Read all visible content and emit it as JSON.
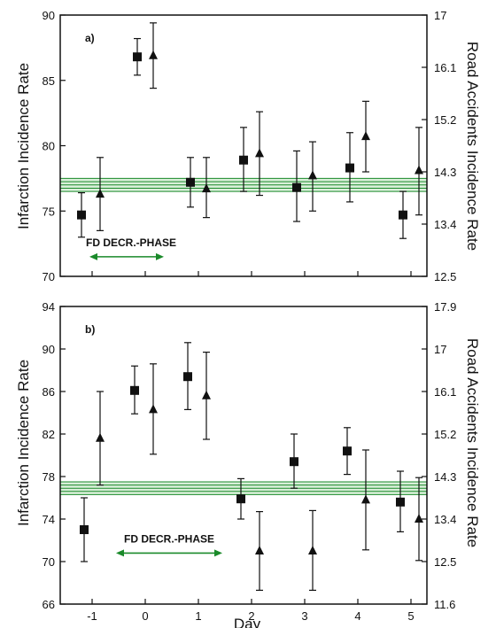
{
  "chart_data": [
    {
      "type": "scatter",
      "panel_label": "a)",
      "ylabel": "Infarction Incidence Rate",
      "y2label": "Road Accidents Incidence Rate",
      "xlim": [
        -1.6,
        5.3
      ],
      "ylim": [
        70,
        90
      ],
      "y2lim": [
        12.5,
        17
      ],
      "yticks": [
        "70",
        "75",
        "80",
        "85",
        "90"
      ],
      "y2ticks": [
        "12.5",
        "13.4",
        "14.3",
        "15.2",
        "16.1",
        "17"
      ],
      "grid": false,
      "legend": "none",
      "baseline_band": [
        76.5,
        77.5
      ],
      "series": [
        {
          "marker": "square",
          "points": [
            {
              "x": -1.2,
              "y": 74.7,
              "lo": 73.0,
              "hi": 76.4
            },
            {
              "x": -0.15,
              "y": 86.8,
              "lo": 85.4,
              "hi": 88.2
            },
            {
              "x": 0.85,
              "y": 77.2,
              "lo": 75.3,
              "hi": 79.1
            },
            {
              "x": 1.85,
              "y": 78.9,
              "lo": 76.5,
              "hi": 81.4
            },
            {
              "x": 2.85,
              "y": 76.8,
              "lo": 74.2,
              "hi": 79.6
            },
            {
              "x": 3.85,
              "y": 78.3,
              "lo": 75.7,
              "hi": 81.0
            },
            {
              "x": 4.85,
              "y": 74.7,
              "lo": 72.9,
              "hi": 76.5
            }
          ]
        },
        {
          "marker": "triangle",
          "points": [
            {
              "x": -0.85,
              "y": 76.3,
              "lo": 73.5,
              "hi": 79.1
            },
            {
              "x": 0.15,
              "y": 86.9,
              "lo": 84.4,
              "hi": 89.4
            },
            {
              "x": 1.15,
              "y": 76.7,
              "lo": 74.5,
              "hi": 79.1
            },
            {
              "x": 2.15,
              "y": 79.4,
              "lo": 76.2,
              "hi": 82.6
            },
            {
              "x": 3.15,
              "y": 77.7,
              "lo": 75.0,
              "hi": 80.3
            },
            {
              "x": 4.15,
              "y": 80.7,
              "lo": 78.0,
              "hi": 83.4
            },
            {
              "x": 5.15,
              "y": 78.1,
              "lo": 74.7,
              "hi": 81.4
            }
          ]
        }
      ],
      "annotation": {
        "text": "FD DECR.-PHASE",
        "x_start": -1.05,
        "x_end": 0.35,
        "arrow_y": 71.5
      }
    },
    {
      "type": "scatter",
      "panel_label": "b)",
      "ylabel": "Infarction Incidence Rate",
      "y2label": "Road Accidents Incidence Rate",
      "xlabel": "Day",
      "xlim": [
        -1.6,
        5.3
      ],
      "ylim": [
        66,
        94
      ],
      "y2lim": [
        11.6,
        17.9
      ],
      "xticks": [
        "-1",
        "0",
        "1",
        "2",
        "3",
        "4",
        "5"
      ],
      "yticks": [
        "66",
        "70",
        "74",
        "78",
        "82",
        "86",
        "90",
        "94"
      ],
      "y2ticks": [
        "11.6",
        "12.5",
        "13.4",
        "14.3",
        "15.2",
        "16.1",
        "17",
        "17.9"
      ],
      "grid": false,
      "legend": "none",
      "baseline_band": [
        76.3,
        77.5
      ],
      "series": [
        {
          "marker": "square",
          "points": [
            {
              "x": -1.15,
              "y": 73.0,
              "lo": 70.0,
              "hi": 76.0
            },
            {
              "x": -0.2,
              "y": 86.1,
              "lo": 83.9,
              "hi": 88.4
            },
            {
              "x": 0.8,
              "y": 87.4,
              "lo": 84.3,
              "hi": 90.6
            },
            {
              "x": 1.8,
              "y": 75.9,
              "lo": 74.0,
              "hi": 77.8
            },
            {
              "x": 2.8,
              "y": 79.4,
              "lo": 76.9,
              "hi": 82.0
            },
            {
              "x": 3.8,
              "y": 80.4,
              "lo": 78.2,
              "hi": 82.6
            },
            {
              "x": 4.8,
              "y": 75.6,
              "lo": 72.8,
              "hi": 78.5
            }
          ]
        },
        {
          "marker": "triangle",
          "points": [
            {
              "x": -0.85,
              "y": 81.6,
              "lo": 77.2,
              "hi": 86.0
            },
            {
              "x": 0.15,
              "y": 84.3,
              "lo": 80.1,
              "hi": 88.6
            },
            {
              "x": 1.15,
              "y": 85.6,
              "lo": 81.5,
              "hi": 89.7
            },
            {
              "x": 2.15,
              "y": 71.0,
              "lo": 67.3,
              "hi": 74.7
            },
            {
              "x": 3.15,
              "y": 71.0,
              "lo": 67.3,
              "hi": 74.8
            },
            {
              "x": 4.15,
              "y": 75.8,
              "lo": 71.1,
              "hi": 80.5
            },
            {
              "x": 5.15,
              "y": 74.0,
              "lo": 70.1,
              "hi": 77.9
            }
          ]
        }
      ],
      "annotation": {
        "text": "FD DECR.-PHASE",
        "x_start": -0.55,
        "x_end": 1.45,
        "arrow_y": 70.8
      }
    }
  ]
}
